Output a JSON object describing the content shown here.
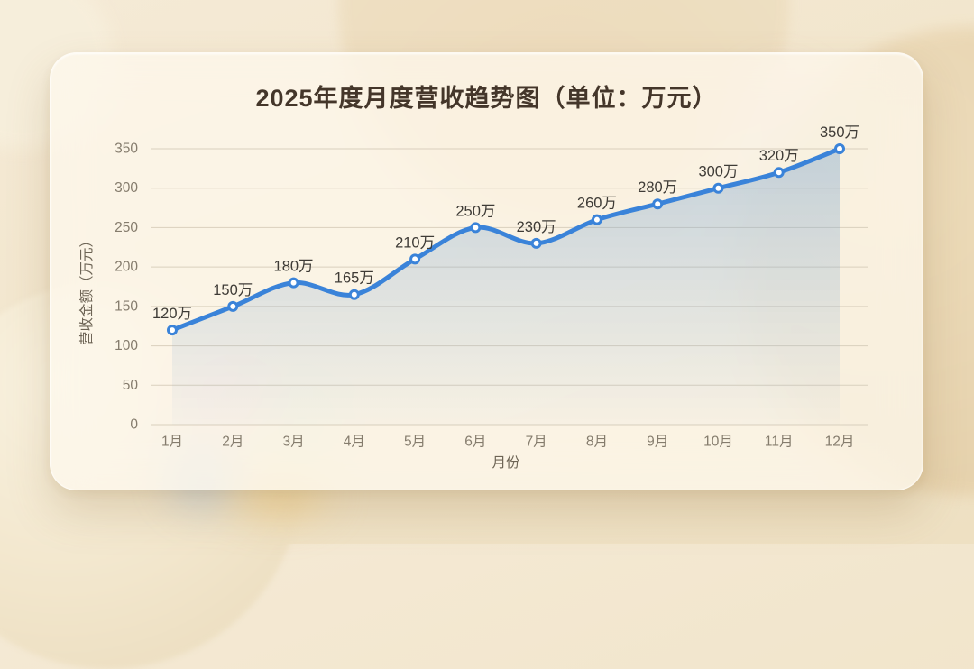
{
  "page": {
    "background_color": "#f2e6cd",
    "card_color": "rgba(253,248,238,0.74)"
  },
  "chart_data": {
    "type": "line",
    "title": "2025年度月度营收趋势图（单位：万元）",
    "xlabel": "月份",
    "ylabel": "营收金额（万元）",
    "categories": [
      "1月",
      "2月",
      "3月",
      "4月",
      "5月",
      "6月",
      "7月",
      "8月",
      "9月",
      "10月",
      "11月",
      "12月"
    ],
    "values": [
      120,
      150,
      180,
      165,
      210,
      250,
      230,
      260,
      280,
      300,
      320,
      350
    ],
    "point_labels": [
      "120万",
      "150万",
      "180万",
      "165万",
      "210万",
      "250万",
      "230万",
      "260万",
      "280万",
      "300万",
      "320万",
      "350万"
    ],
    "yticks": [
      0,
      50,
      100,
      150,
      200,
      250,
      300,
      350
    ],
    "ylim": [
      0,
      350
    ],
    "grid": true,
    "smooth": true,
    "legend": "none",
    "style": {
      "line_color": "#3a83d9",
      "point_fill": "#ffffff",
      "area_color": "#7aa3cd",
      "area_opacity_top": "0.42",
      "area_opacity_bottom": "0.03",
      "grid_color": "#d9cfbd",
      "tick_color": "#857c6d",
      "axis_label_color": "#6d6455",
      "title_color": "#44362a",
      "data_label_color": "#3e3b36"
    }
  }
}
